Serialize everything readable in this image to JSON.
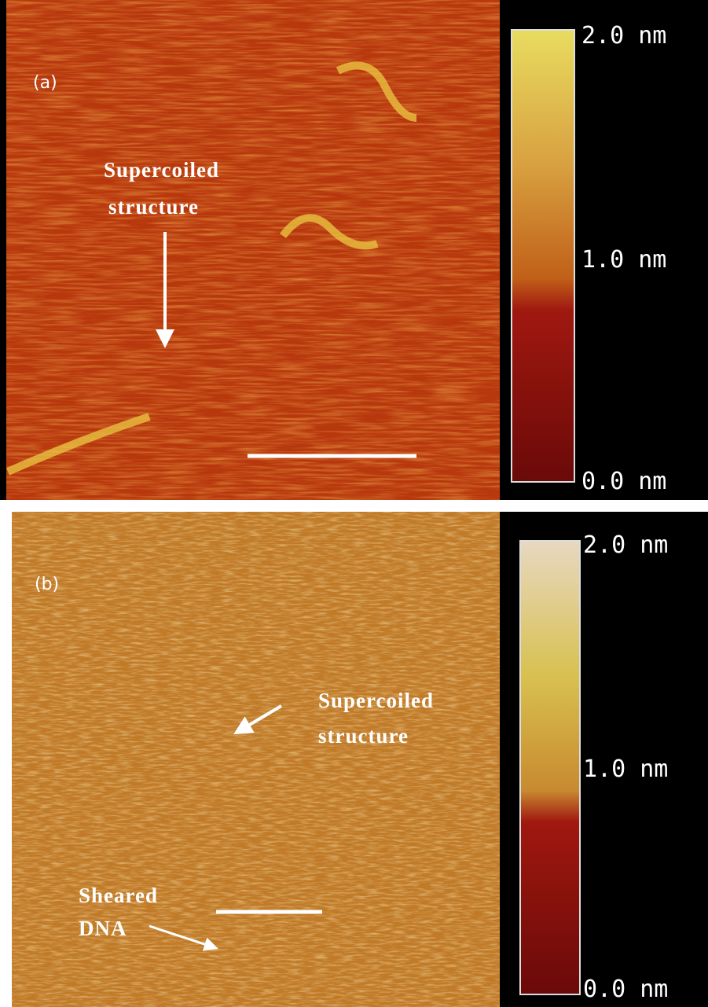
{
  "panels": [
    {
      "label": "(a)",
      "annotations": [
        {
          "lines": [
            "Supercoiled",
            "structure"
          ]
        }
      ],
      "colorbar": {
        "ticks": [
          "2.0 nm",
          "1.0 nm",
          "0.0 nm"
        ]
      }
    },
    {
      "label": "(b)",
      "annotations": [
        {
          "lines": [
            "Supercoiled",
            "structure"
          ]
        },
        {
          "lines": [
            "Sheared",
            "DNA"
          ]
        }
      ],
      "colorbar": {
        "ticks": [
          "2.0 nm",
          "1.0 nm",
          "0.0 nm"
        ]
      }
    }
  ]
}
